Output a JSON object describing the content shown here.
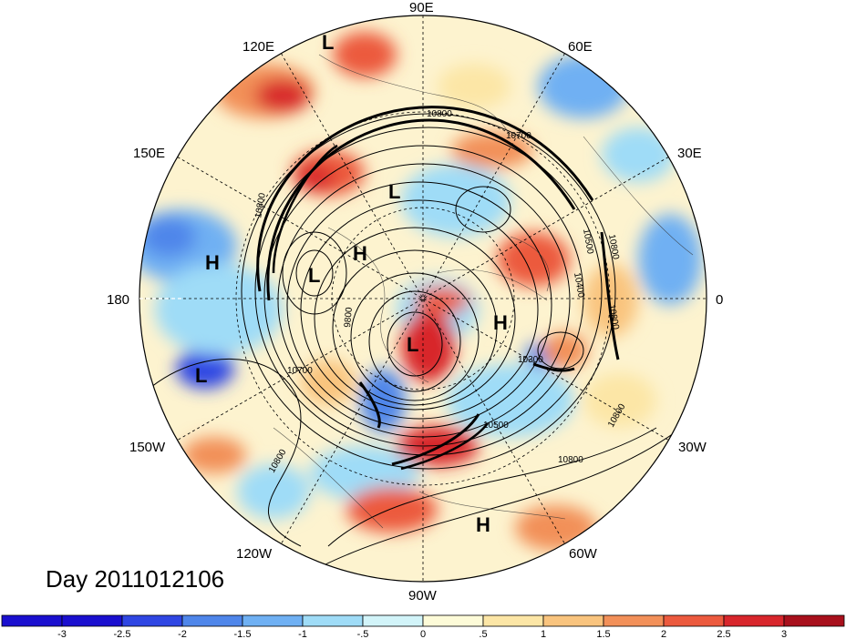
{
  "title": "Day 2011012106",
  "longitude_labels": [
    {
      "id": "lon-90e",
      "text": "90E"
    },
    {
      "id": "lon-120e",
      "text": "120E"
    },
    {
      "id": "lon-60e",
      "text": "60E"
    },
    {
      "id": "lon-150e",
      "text": "150E"
    },
    {
      "id": "lon-30e",
      "text": "30E"
    },
    {
      "id": "lon-180",
      "text": "180"
    },
    {
      "id": "lon-0",
      "text": "0"
    },
    {
      "id": "lon-150w",
      "text": "150W"
    },
    {
      "id": "lon-30w",
      "text": "30W"
    },
    {
      "id": "lon-120w",
      "text": "120W"
    },
    {
      "id": "lon-60w",
      "text": "60W"
    },
    {
      "id": "lon-90w",
      "text": "90W"
    }
  ],
  "pressure_centers": [
    {
      "id": "low-1",
      "text": "L"
    },
    {
      "id": "low-2",
      "text": "L"
    },
    {
      "id": "low-3",
      "text": "L"
    },
    {
      "id": "low-4",
      "text": "L"
    },
    {
      "id": "low-5",
      "text": "L"
    },
    {
      "id": "high-1",
      "text": "H"
    },
    {
      "id": "high-2",
      "text": "H"
    },
    {
      "id": "high-3",
      "text": "H"
    },
    {
      "id": "high-4",
      "text": "H"
    }
  ],
  "contour_labels": [
    {
      "id": "c1",
      "text": "10800"
    },
    {
      "id": "c2",
      "text": "10700"
    },
    {
      "id": "c3",
      "text": "10800"
    },
    {
      "id": "c4",
      "text": "10500"
    },
    {
      "id": "c5",
      "text": "10400"
    },
    {
      "id": "c6",
      "text": "10800"
    },
    {
      "id": "c7",
      "text": "10700"
    },
    {
      "id": "c8",
      "text": "10800"
    },
    {
      "id": "c9",
      "text": "10500"
    },
    {
      "id": "c10",
      "text": "10800"
    },
    {
      "id": "c11",
      "text": "10800"
    },
    {
      "id": "c12",
      "text": "9800"
    },
    {
      "id": "c13",
      "text": "10300"
    },
    {
      "id": "c14",
      "text": "10800"
    }
  ],
  "colorbar": {
    "colors": [
      "#1a0fcf",
      "#2f46e3",
      "#4f86ea",
      "#6fb0f3",
      "#9fdcf7",
      "#d2f4f9",
      "#fdfbd8",
      "#fce6a6",
      "#f9c47e",
      "#f29059",
      "#ec5a3e",
      "#d8262c",
      "#a8101c"
    ],
    "tick_labels": [
      "-3",
      "-2.5",
      "-2",
      "-1.5",
      "-1",
      "-.5",
      "0",
      ".5",
      "1",
      "1.5",
      "2",
      "2.5",
      "3"
    ]
  }
}
